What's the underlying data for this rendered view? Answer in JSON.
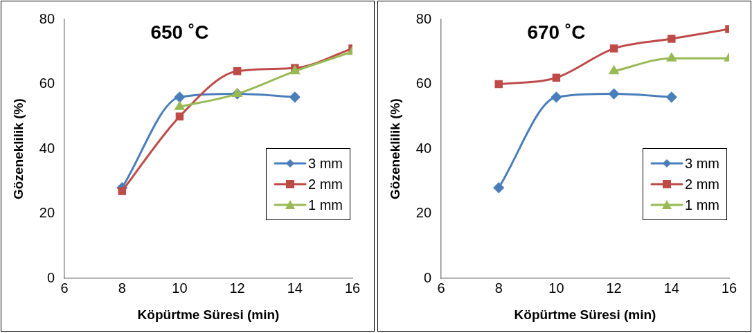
{
  "chart_data": [
    {
      "type": "line",
      "title": "650 ˚C",
      "xlabel": "Köpürtme Süresi (min)",
      "ylabel": "Gözeneklilik (%)",
      "x": [
        8,
        10,
        12,
        14,
        16
      ],
      "xlim": [
        6,
        16
      ],
      "xticks": [
        6,
        8,
        10,
        12,
        14,
        16
      ],
      "ylim": [
        0,
        80
      ],
      "yticks": [
        0,
        20,
        40,
        60,
        80
      ],
      "grid": false,
      "legend": "bottom right",
      "series": [
        {
          "name": "3 mm",
          "color": "#4a7ebb",
          "marker": "diamond",
          "values": [
            28,
            56,
            57,
            56,
            null
          ]
        },
        {
          "name": "2 mm",
          "color": "#be4b48",
          "marker": "square",
          "values": [
            27,
            50,
            64,
            65,
            71
          ]
        },
        {
          "name": "1 mm",
          "color": "#98b954",
          "marker": "triangle",
          "values": [
            null,
            53,
            57,
            64,
            70
          ]
        }
      ]
    },
    {
      "type": "line",
      "title": "670 ˚C",
      "xlabel": "Köpürtme Süresi (min)",
      "ylabel": "Gözeneklilik (%)",
      "x": [
        8,
        10,
        12,
        14,
        16
      ],
      "xlim": [
        6,
        16
      ],
      "xticks": [
        6,
        8,
        10,
        12,
        14,
        16
      ],
      "ylim": [
        0,
        80
      ],
      "yticks": [
        0,
        20,
        40,
        60,
        80
      ],
      "grid": false,
      "legend": "bottom right",
      "series": [
        {
          "name": "3 mm",
          "color": "#4a7ebb",
          "marker": "diamond",
          "values": [
            28,
            56,
            57,
            56,
            null
          ]
        },
        {
          "name": "2 mm",
          "color": "#be4b48",
          "marker": "square",
          "values": [
            60,
            62,
            71,
            74,
            77
          ]
        },
        {
          "name": "1 mm",
          "color": "#98b954",
          "marker": "triangle",
          "values": [
            null,
            null,
            64,
            68,
            68
          ]
        }
      ]
    }
  ]
}
